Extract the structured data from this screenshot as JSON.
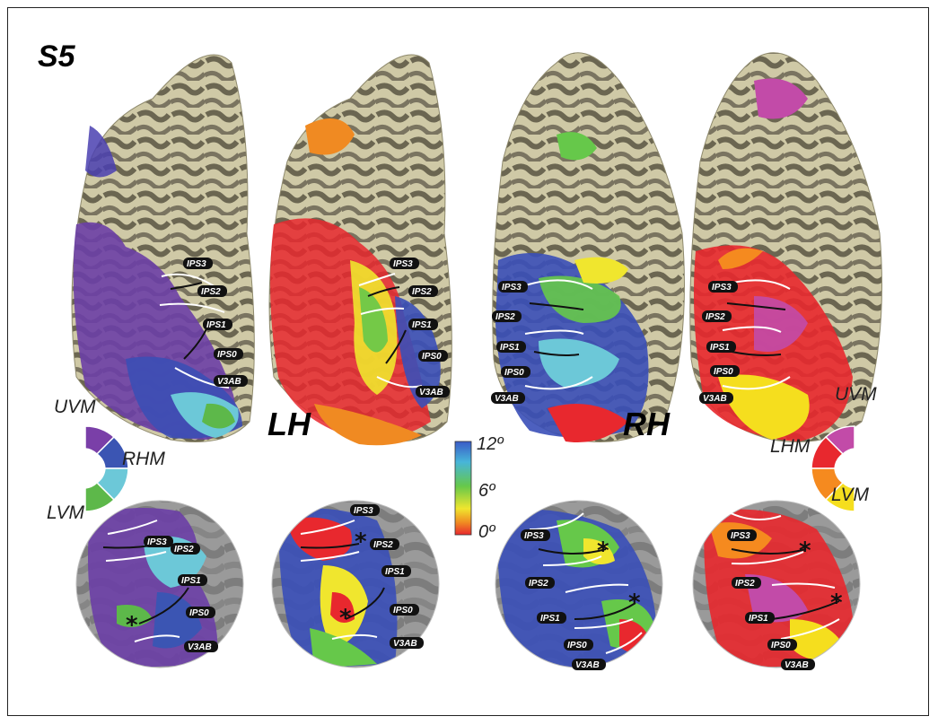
{
  "figure": {
    "subject_label": "S5",
    "hemisphere_left": "LH",
    "hemisphere_right": "RH"
  },
  "legend_left": {
    "upper": "UVM",
    "middle": "RHM",
    "lower": "LVM",
    "colors": [
      "#7a3fa8",
      "#3b55b3",
      "#6cc8d8",
      "#5db84a"
    ]
  },
  "legend_right": {
    "upper": "UVM",
    "middle": "LHM",
    "lower": "LVM",
    "colors": [
      "#c24ba8",
      "#e8282e",
      "#f58a1f",
      "#f5de1e"
    ]
  },
  "colorbar": {
    "max_label": "12º",
    "mid_label": "6º",
    "min_label": "0º",
    "colors": [
      "#3a5bc7",
      "#47b5d9",
      "#66c84a",
      "#f0e62e",
      "#f08a22",
      "#e8282e"
    ]
  },
  "regions": {
    "ips3": "IPS3",
    "ips2": "IPS2",
    "ips1": "IPS1",
    "ips0": "IPS0",
    "v3ab": "V3AB"
  }
}
